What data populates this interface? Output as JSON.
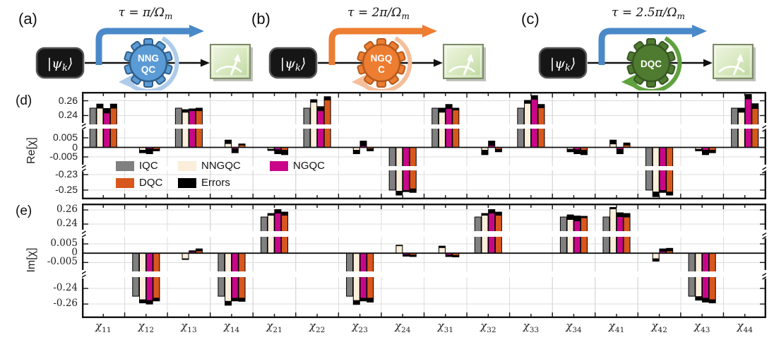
{
  "circuits": [
    {
      "id": "a",
      "label": "(a)",
      "tau_main": "τ = π/Ω",
      "tau_sub": "m",
      "ket_pre": "|ψ",
      "ket_sub": "k",
      "ket_post": "⟩",
      "gear_lines": [
        "NNG",
        "QC"
      ],
      "gear_body_color": "#5b9bd5",
      "gear_outline_color": "#2e5f8a",
      "gear_text_color": "#ffffff",
      "big_arrow_color": "#4a89c8",
      "loop_arrow_color": "#aecbea"
    },
    {
      "id": "b",
      "label": "(b)",
      "tau_main": "τ = 2π/Ω",
      "tau_sub": "m",
      "ket_pre": "|ψ",
      "ket_sub": "k",
      "ket_post": "⟩",
      "gear_lines": [
        "NGQ",
        "C"
      ],
      "gear_body_color": "#ed7d31",
      "gear_outline_color": "#b55a1c",
      "gear_text_color": "#ffffff",
      "big_arrow_color": "#ed7d31",
      "loop_arrow_color": "#f5be9a"
    },
    {
      "id": "c",
      "label": "(c)",
      "tau_main": "τ = 2.5π/Ω",
      "tau_sub": "m",
      "ket_pre": "|ψ",
      "ket_sub": "k",
      "ket_post": "⟩",
      "gear_lines": [
        "DQC"
      ],
      "gear_body_color": "#4e7b2f",
      "gear_outline_color": "#375623",
      "gear_text_color": "#ffffff",
      "big_arrow_color": "#4a89c8",
      "loop_arrow_color": "#5fa13e"
    }
  ],
  "legend": {
    "items": [
      {
        "name": "IQC",
        "color": "#808080"
      },
      {
        "name": "NNGQC",
        "color": "#fbeeda"
      },
      {
        "name": "NGQC",
        "color": "#c9068a"
      },
      {
        "name": "DQC",
        "color": "#d8571d"
      },
      {
        "name": "Errors",
        "color": "#000000"
      }
    ]
  },
  "chart_data": [
    {
      "type": "bar",
      "panel_label": "(d)",
      "ylabel": "Re[χ]",
      "grid": true,
      "height": 152,
      "categories": [
        "χ11",
        "χ12",
        "χ13",
        "χ14",
        "χ21",
        "χ22",
        "χ23",
        "χ24",
        "χ31",
        "χ32",
        "χ33",
        "χ34",
        "χ41",
        "χ42",
        "χ43",
        "χ44"
      ],
      "yticks": [
        {
          "v": 0.26,
          "label": "0.26"
        },
        {
          "v": 0.24,
          "label": "0.24"
        },
        {
          "v": 0.005,
          "label": "0.005"
        },
        {
          "v": 0,
          "label": "0"
        },
        {
          "v": -0.005,
          "label": "-0.005"
        },
        {
          "v": -0.23,
          "label": "-0.23"
        },
        {
          "v": -0.25,
          "label": "-0.25"
        }
      ],
      "axis_segments": [
        {
          "vtop": 0.272,
          "vbot": 0.228,
          "ytop": 0,
          "ybot": 46
        },
        {
          "vtop": 0.0098,
          "vbot": -0.0098,
          "ytop": 52,
          "ybot": 105
        },
        {
          "vtop": -0.2245,
          "vbot": -0.262,
          "ytop": 111,
          "ybot": 152
        }
      ],
      "break_bands": [
        [
          46,
          52
        ],
        [
          105,
          111
        ]
      ],
      "series": [
        {
          "name": "IQC",
          "color": "#808080",
          "values": [
            0.25,
            0,
            0.25,
            0,
            0,
            0.25,
            0,
            -0.25,
            0.25,
            0,
            0.25,
            0,
            0,
            -0.25,
            0,
            0.25
          ]
        },
        {
          "name": "NNGQC",
          "color": "#fbeeda",
          "values": [
            0.25,
            -0.0015,
            0.2445,
            0.002,
            -0.001,
            0.258,
            -0.0015,
            -0.2515,
            0.2445,
            -0.0015,
            0.2565,
            -0.001,
            0.0018,
            -0.2525,
            -0.001,
            0.2445
          ],
          "error_tips": [
            0.256,
            -0.003,
            0.2485,
            0.004,
            -0.0018,
            0.262,
            -0.0035,
            -0.257,
            0.2505,
            -0.004,
            0.261,
            -0.0025,
            0.004,
            -0.259,
            -0.002,
            0.2505
          ]
        },
        {
          "name": "NGQC",
          "color": "#c9068a",
          "values": [
            0.2435,
            -0.0008,
            0.2465,
            -0.0008,
            -0.0012,
            0.2465,
            0.0008,
            -0.2505,
            0.2495,
            0.001,
            0.262,
            -0.0012,
            -0.001,
            -0.2505,
            -0.0015,
            0.2625
          ],
          "error_tips": [
            0.25,
            -0.0035,
            0.2495,
            -0.003,
            -0.0035,
            0.2525,
            0.0035,
            -0.2525,
            0.2555,
            0.0035,
            0.2675,
            -0.0035,
            -0.0035,
            -0.2535,
            -0.004,
            0.269
          ]
        },
        {
          "name": "DQC",
          "color": "#d8571d",
          "values": [
            0.25,
            -0.001,
            0.2465,
            0.0012,
            -0.0015,
            0.261,
            -0.0008,
            -0.2485,
            0.2475,
            -0.001,
            0.2505,
            -0.0015,
            0.0012,
            -0.2525,
            -0.0015,
            0.2495
          ],
          "error_tips": [
            0.256,
            -0.002,
            0.2505,
            0.002,
            -0.004,
            0.266,
            -0.002,
            -0.2535,
            0.2505,
            -0.0025,
            0.2555,
            -0.004,
            0.0025,
            -0.257,
            -0.003,
            0.2565
          ]
        }
      ],
      "errors_color": "#000000"
    },
    {
      "type": "bar",
      "panel_label": "(e)",
      "ylabel": "Im[χ]",
      "grid": true,
      "height": 162,
      "categories": [
        "χ11",
        "χ12",
        "χ13",
        "χ14",
        "χ21",
        "χ22",
        "χ23",
        "χ24",
        "χ31",
        "χ32",
        "χ33",
        "χ34",
        "χ41",
        "χ42",
        "χ43",
        "χ44"
      ],
      "yticks": [
        {
          "v": 0.26,
          "label": "0.26"
        },
        {
          "v": 0.24,
          "label": "0.24"
        },
        {
          "v": 0.005,
          "label": "0.005"
        },
        {
          "v": 0,
          "label": "0"
        },
        {
          "v": -0.005,
          "label": "-0.005"
        },
        {
          "v": -0.24,
          "label": "-0.24"
        },
        {
          "v": -0.26,
          "label": "-0.26"
        }
      ],
      "axis_segments": [
        {
          "vtop": 0.269,
          "vbot": 0.23,
          "ytop": 0,
          "ybot": 39
        },
        {
          "vtop": 0.0088,
          "vbot": -0.0098,
          "ytop": 47,
          "ybot": 96
        },
        {
          "vtop": -0.2255,
          "vbot": -0.278,
          "ytop": 104,
          "ybot": 162
        }
      ],
      "break_bands": [
        [
          39,
          47
        ],
        [
          96,
          104
        ]
      ],
      "series": [
        {
          "name": "IQC",
          "color": "#808080",
          "values": [
            0,
            -0.25,
            0,
            -0.25,
            0.25,
            0,
            -0.25,
            0,
            0,
            0.25,
            0,
            0.25,
            0.25,
            0,
            -0.25,
            0
          ]
        },
        {
          "name": "NNGQC",
          "color": "#fbeeda",
          "values": [
            0,
            -0.2545,
            -0.003,
            -0.2565,
            0.2525,
            0,
            -0.2555,
            0.004,
            0.003,
            0.2525,
            0,
            0.2465,
            0.2615,
            -0.003,
            -0.2505,
            0
          ],
          "error_tips": [
            0,
            -0.259,
            -0.0035,
            -0.262,
            0.2555,
            0,
            -0.261,
            0.0045,
            0.004,
            0.2555,
            0,
            0.2535,
            0.264,
            -0.0045,
            -0.2555,
            0
          ]
        },
        {
          "name": "NGQC",
          "color": "#c9068a",
          "values": [
            0,
            -0.2555,
            0.0008,
            -0.2525,
            0.2555,
            0,
            -0.2525,
            -0.0008,
            -0.001,
            0.2555,
            0,
            0.2445,
            0.2505,
            0.001,
            -0.2525,
            0
          ],
          "error_tips": [
            0,
            -0.2605,
            0.0015,
            -0.2565,
            0.261,
            0,
            -0.2565,
            -0.0018,
            -0.002,
            0.261,
            0,
            0.252,
            0.2565,
            0.0025,
            -0.258,
            0
          ]
        },
        {
          "name": "DQC",
          "color": "#d8571d",
          "values": [
            0,
            -0.2525,
            0.0012,
            -0.2525,
            0.2525,
            0,
            -0.2525,
            -0.001,
            -0.0012,
            0.2525,
            0,
            0.249,
            0.25,
            0.0012,
            -0.2545,
            0
          ],
          "error_tips": [
            0,
            -0.2565,
            0.0025,
            -0.257,
            0.2575,
            0,
            -0.258,
            -0.002,
            -0.0022,
            0.2575,
            0,
            0.2515,
            0.2555,
            0.0028,
            -0.259,
            0
          ]
        }
      ],
      "errors_color": "#000000"
    }
  ]
}
